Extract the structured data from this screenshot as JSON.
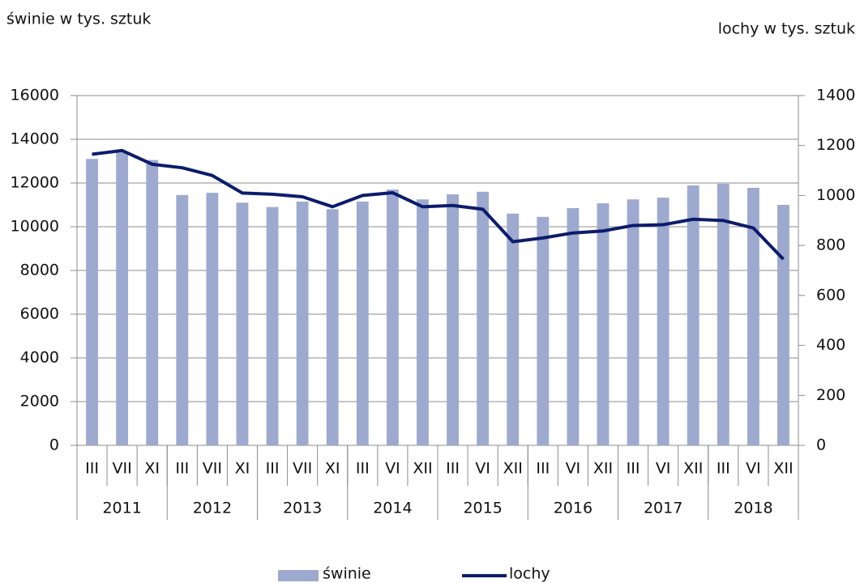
{
  "chart_data": {
    "type": "bar_line",
    "y_axis_label": "świnie w tys. sztuk",
    "y2_axis_label": "lochy w tys. sztuk",
    "category_groups": [
      {
        "label": "2011",
        "categories": [
          "III",
          "VII",
          "XI"
        ]
      },
      {
        "label": "2012",
        "categories": [
          "III",
          "VII",
          "XI"
        ]
      },
      {
        "label": "2013",
        "categories": [
          "III",
          "VII",
          "XI"
        ]
      },
      {
        "label": "2014",
        "categories": [
          "III",
          "VI",
          "XII"
        ]
      },
      {
        "label": "2015",
        "categories": [
          "III",
          "VI",
          "XII"
        ]
      },
      {
        "label": "2016",
        "categories": [
          "III",
          "VI",
          "XII"
        ]
      },
      {
        "label": "2017",
        "categories": [
          "III",
          "VI",
          "XII"
        ]
      },
      {
        "label": "2018",
        "categories": [
          "III",
          "VI",
          "XII"
        ]
      }
    ],
    "series": [
      {
        "name": "świnie",
        "type": "bar",
        "axis": "y",
        "color": "#9ea9cf",
        "values": [
          13100,
          13400,
          13050,
          11450,
          11550,
          11100,
          10900,
          11150,
          10800,
          11150,
          11700,
          11250,
          11480,
          11600,
          10600,
          10450,
          10850,
          11070,
          11250,
          11330,
          11890,
          11960,
          11780,
          11000
        ]
      },
      {
        "name": "lochy",
        "type": "line",
        "axis": "y2",
        "color": "#0c1c6c",
        "values": [
          1165,
          1180,
          1125,
          1111,
          1080,
          1010,
          1005,
          995,
          955,
          1000,
          1011,
          955,
          960,
          945,
          815,
          830,
          850,
          858,
          880,
          883,
          905,
          900,
          870,
          745
        ]
      }
    ],
    "ylim": [
      0,
      16000
    ],
    "yticks": [
      0,
      2000,
      4000,
      6000,
      8000,
      10000,
      12000,
      14000,
      16000
    ],
    "y2lim": [
      0,
      1400
    ],
    "y2ticks": [
      0,
      200,
      400,
      600,
      800,
      1000,
      1200,
      1400
    ],
    "grid": true,
    "legend": "bottom"
  }
}
